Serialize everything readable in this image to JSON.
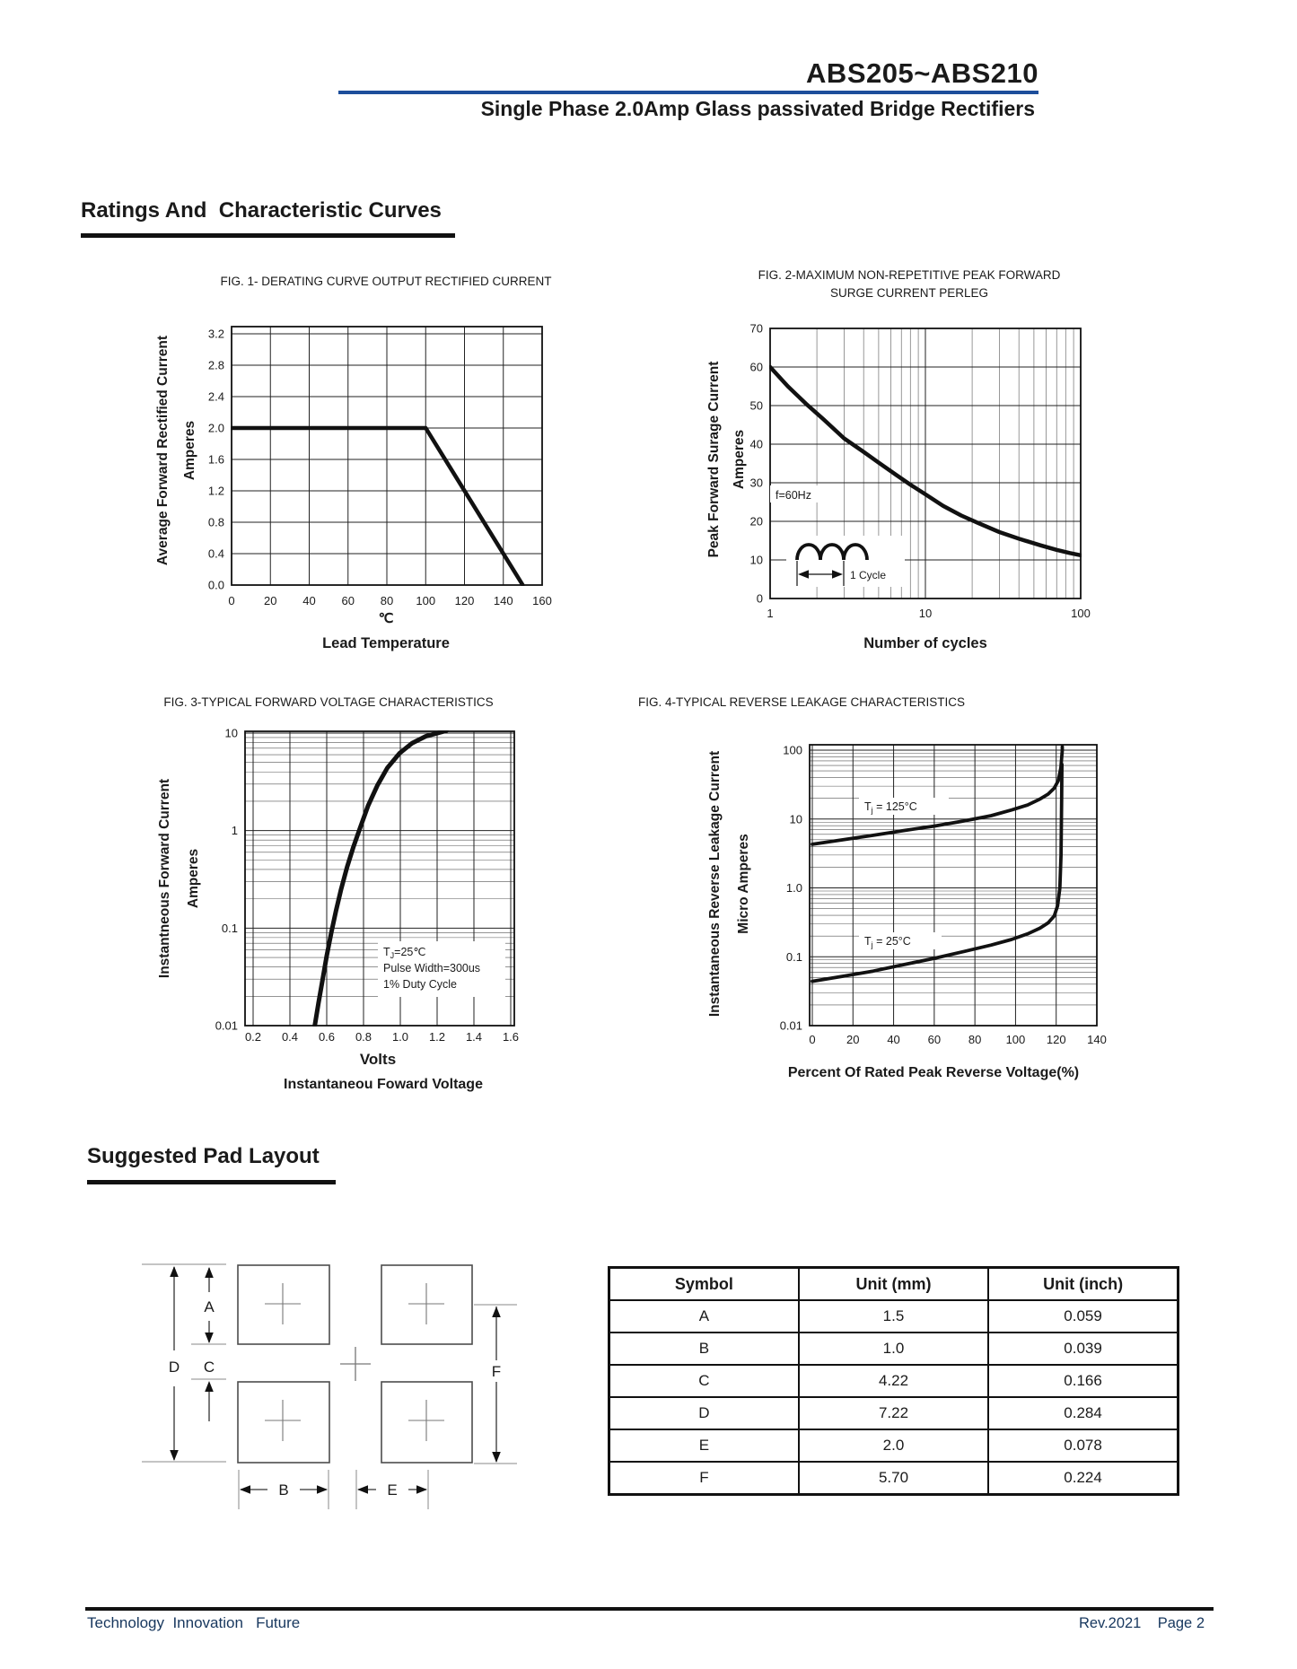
{
  "colors": {
    "accent_blue": "#1d4e9b",
    "footer_navy": "#17375e",
    "ink": "#1a1a1a"
  },
  "page": {
    "header": {
      "part_number": "ABS205~ABS210",
      "subtitle": "Single Phase 2.0Amp Glass passivated Bridge Rectifiers"
    },
    "sections": {
      "ratings": "Ratings And  Characteristic Curves",
      "pad_layout": "Suggested Pad Layout"
    },
    "footer": {
      "left": "Technology  Innovation   Future",
      "right": "Rev.2021    Page 2"
    }
  },
  "chart_data": [
    {
      "id": "fig1",
      "type": "line",
      "title_lines": [
        "FIG. 1- DERATING CURVE OUTPUT RECTIFIED CURRENT"
      ],
      "ylabel_lines": [
        "Average Forward Rectified Current",
        "Amperes"
      ],
      "xlabel_lines": [
        "℃",
        "Lead Temperature"
      ],
      "xscale": "linear",
      "yscale": "linear",
      "xlim": [
        0,
        160
      ],
      "ylim": [
        0,
        3.2
      ],
      "grid": true,
      "xticks": {
        "values": [
          0,
          20,
          40,
          60,
          80,
          100,
          120,
          140,
          160
        ],
        "labels": [
          "0",
          "20",
          "40",
          "60",
          "80",
          "100",
          "120",
          "140",
          "160"
        ]
      },
      "yticks": {
        "values": [
          0,
          0.4,
          0.8,
          1.2,
          1.6,
          2,
          2.4,
          2.8,
          3.2
        ],
        "labels": [
          "0.0",
          "0.4",
          "0.8",
          "1.2",
          "1.6",
          "2.0",
          "2.4",
          "2.8",
          "3.2"
        ]
      },
      "series": [
        {
          "name": "output-rectified-current-derating",
          "points": [
            [
              0,
              2
            ],
            [
              100,
              2
            ],
            [
              150,
              0
            ]
          ]
        }
      ]
    },
    {
      "id": "fig2",
      "type": "line",
      "title_lines": [
        "FIG. 2-MAXIMUM NON-REPETITIVE PEAK FORWARD",
        "SURGE CURRENT PERLEG"
      ],
      "ylabel_lines": [
        "Peak Forward Surage Current",
        "Amperes"
      ],
      "xlabel_lines": [
        "Number of cycles"
      ],
      "xscale": "log",
      "yscale": "linear",
      "xlim": [
        1,
        100
      ],
      "ylim": [
        0,
        70
      ],
      "grid": true,
      "xticks": {
        "values": [
          1,
          10,
          100
        ],
        "labels": [
          "1",
          "10",
          "100"
        ]
      },
      "yticks": {
        "values": [
          0,
          10,
          20,
          30,
          40,
          50,
          60,
          70
        ],
        "labels": [
          "0",
          "10",
          "20",
          "30",
          "40",
          "50",
          "60",
          "70"
        ]
      },
      "annotations": {
        "freq": "f=60Hz",
        "cycle": "1 Cycle"
      },
      "series": [
        {
          "name": "peak-forward-surge-current",
          "points": [
            [
              1,
              60
            ],
            [
              1.3,
              55
            ],
            [
              1.7,
              50.5
            ],
            [
              2.2,
              46.5
            ],
            [
              3,
              41.5
            ],
            [
              4,
              38
            ],
            [
              5,
              35.2
            ],
            [
              6.5,
              32
            ],
            [
              8,
              29.5
            ],
            [
              10,
              27
            ],
            [
              13,
              24
            ],
            [
              17,
              21.5
            ],
            [
              22,
              19.5
            ],
            [
              30,
              17.2
            ],
            [
              40,
              15.5
            ],
            [
              55,
              13.8
            ],
            [
              70,
              12.6
            ],
            [
              85,
              11.8
            ],
            [
              100,
              11.2
            ]
          ]
        }
      ]
    },
    {
      "id": "fig3",
      "type": "line",
      "title_lines": [
        "FIG. 3-TYPICAL FORWARD VOLTAGE CHARACTERISTICS"
      ],
      "ylabel_lines": [
        "Instantneous Forward Current",
        "Amperes"
      ],
      "xlabel_lines": [
        "Volts",
        "Instantaneou Foward Voltage"
      ],
      "xscale": "linear",
      "yscale": "log",
      "xlim": [
        0.2,
        1.6
      ],
      "ylim": [
        0.01,
        10
      ],
      "grid": true,
      "xticks": {
        "values": [
          0.2,
          0.4,
          0.6,
          0.8,
          1.0,
          1.2,
          1.4,
          1.6
        ],
        "labels": [
          "0.2",
          "0.4",
          "0.6",
          "0.8",
          "1.0",
          "1.2",
          "1.4",
          "1.6"
        ]
      },
      "yticks": {
        "values": [
          10,
          1,
          0.1,
          0.01
        ],
        "labels": [
          "10",
          "1",
          "0.1",
          "0.01"
        ]
      },
      "annotation_lines": [
        {
          "pre": "T",
          "sub": "J",
          "post": "=25℃"
        },
        {
          "text": "Pulse Width=300us"
        },
        {
          "text": "1% Duty Cycle"
        }
      ],
      "series": [
        {
          "name": "instantaneous-forward-voltage",
          "points": [
            [
              0.535,
              0.01
            ],
            [
              0.555,
              0.017
            ],
            [
              0.578,
              0.03
            ],
            [
              0.6,
              0.052
            ],
            [
              0.625,
              0.09
            ],
            [
              0.65,
              0.15
            ],
            [
              0.678,
              0.25
            ],
            [
              0.71,
              0.42
            ],
            [
              0.745,
              0.68
            ],
            [
              0.78,
              1.05
            ],
            [
              0.825,
              1.8
            ],
            [
              0.875,
              2.9
            ],
            [
              0.93,
              4.4
            ],
            [
              0.995,
              6.2
            ],
            [
              1.065,
              7.9
            ],
            [
              1.14,
              9.3
            ],
            [
              1.25,
              10.6
            ]
          ]
        }
      ]
    },
    {
      "id": "fig4",
      "type": "line",
      "title_lines": [
        "FIG. 4-TYPICAL REVERSE LEAKAGE CHARACTERISTICS"
      ],
      "ylabel_lines": [
        "Instantaneous Reverse Leakage Current",
        "Micro Amperes"
      ],
      "xlabel_lines": [
        "Percent Of Rated Peak Reverse Voltage(%)"
      ],
      "xscale": "linear",
      "yscale": "log",
      "xlim": [
        0,
        140
      ],
      "ylim": [
        0.01,
        100
      ],
      "grid": true,
      "xticks": {
        "values": [
          0,
          20,
          40,
          60,
          80,
          100,
          120,
          140
        ],
        "labels": [
          "0",
          "20",
          "40",
          "60",
          "80",
          "100",
          "120",
          "140"
        ]
      },
      "yticks": {
        "values": [
          100,
          10,
          1,
          0.1,
          0.01
        ],
        "labels": [
          "100",
          "10",
          "1.0",
          "0.1",
          "0.01"
        ]
      },
      "series": [
        {
          "name": "reverse-leakage-125C",
          "label": {
            "pre": "T",
            "sub": "j",
            "post": " = 125°C"
          },
          "points": [
            [
              0,
              4.3
            ],
            [
              15,
              5
            ],
            [
              30,
              5.8
            ],
            [
              45,
              6.8
            ],
            [
              60,
              7.9
            ],
            [
              75,
              9.4
            ],
            [
              88,
              11.2
            ],
            [
              98,
              13.5
            ],
            [
              106,
              16
            ],
            [
              112,
              19.5
            ],
            [
              116,
              23
            ],
            [
              119,
              28
            ],
            [
              121,
              36
            ],
            [
              122.3,
              55
            ],
            [
              123,
              100
            ],
            [
              123,
              112
            ]
          ]
        },
        {
          "name": "reverse-leakage-25C",
          "label": {
            "pre": "T",
            "sub": "j",
            "post": " = 25°C"
          },
          "points": [
            [
              0,
              0.044
            ],
            [
              15,
              0.052
            ],
            [
              30,
              0.062
            ],
            [
              45,
              0.077
            ],
            [
              60,
              0.095
            ],
            [
              75,
              0.12
            ],
            [
              88,
              0.148
            ],
            [
              98,
              0.178
            ],
            [
              106,
              0.215
            ],
            [
              112,
              0.26
            ],
            [
              116,
              0.31
            ],
            [
              119,
              0.39
            ],
            [
              120.7,
              0.55
            ],
            [
              121.8,
              1.0
            ],
            [
              122.4,
              3
            ],
            [
              122.7,
              20
            ],
            [
              122.8,
              62
            ]
          ]
        }
      ]
    }
  ],
  "pad_layout": {
    "labels": {
      "a": "A",
      "b": "B",
      "c": "C",
      "d": "D",
      "e": "E",
      "f": "F"
    }
  },
  "table": {
    "headers": [
      "Symbol",
      "Unit (mm)",
      "Unit (inch)"
    ],
    "rows": [
      [
        "A",
        "1.5",
        "0.059"
      ],
      [
        "B",
        "1.0",
        "0.039"
      ],
      [
        "C",
        "4.22",
        "0.166"
      ],
      [
        "D",
        "7.22",
        "0.284"
      ],
      [
        "E",
        "2.0",
        "0.078"
      ],
      [
        "F",
        "5.70",
        "0.224"
      ]
    ]
  }
}
